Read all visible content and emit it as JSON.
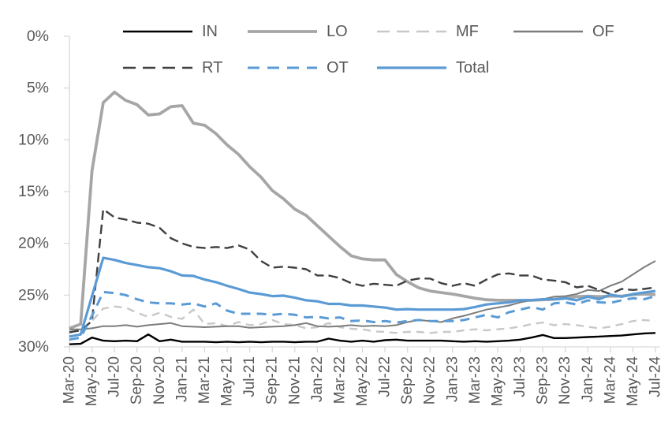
{
  "figure": {
    "background": "#ffffff",
    "axis_color": "#d9d9d9",
    "label_color": "#595959"
  },
  "chart_data": {
    "type": "line",
    "title": "",
    "xlabel": "",
    "ylabel": "",
    "ylim": [
      0,
      30
    ],
    "y_tick_step": 5,
    "y_ticks": [
      "0%",
      "5%",
      "10%",
      "15%",
      "20%",
      "25%",
      "30%"
    ],
    "x_tick_every": 2,
    "grid": false,
    "legend_position": "top",
    "x": [
      "Mar-20",
      "Apr-20",
      "May-20",
      "Jun-20",
      "Jul-20",
      "Aug-20",
      "Sep-20",
      "Oct-20",
      "Nov-20",
      "Dec-20",
      "Jan-21",
      "Feb-21",
      "Mar-21",
      "Apr-21",
      "May-21",
      "Jun-21",
      "Jul-21",
      "Aug-21",
      "Sep-21",
      "Oct-21",
      "Nov-21",
      "Dec-21",
      "Jan-22",
      "Feb-22",
      "Mar-22",
      "Apr-22",
      "May-22",
      "Jun-22",
      "Jul-22",
      "Aug-22",
      "Sep-22",
      "Oct-22",
      "Nov-22",
      "Dec-22",
      "Jan-23",
      "Feb-23",
      "Mar-23",
      "Apr-23",
      "May-23",
      "Jun-23",
      "Jul-23",
      "Aug-23",
      "Sep-23",
      "Oct-23",
      "Nov-23",
      "Dec-23",
      "Jan-24",
      "Feb-24",
      "Mar-24",
      "Apr-24",
      "May-24",
      "Jun-24",
      "Jul-24"
    ],
    "series": [
      {
        "name": "IN",
        "color": "#000000",
        "style": "solid",
        "width": 2.4,
        "values": [
          0.25,
          0.3,
          0.9,
          0.6,
          0.55,
          0.6,
          0.55,
          1.2,
          0.55,
          0.7,
          0.5,
          0.5,
          0.5,
          0.45,
          0.5,
          0.45,
          0.5,
          0.45,
          0.5,
          0.5,
          0.45,
          0.5,
          0.5,
          0.8,
          0.6,
          0.5,
          0.6,
          0.5,
          0.65,
          0.7,
          0.6,
          0.6,
          0.6,
          0.6,
          0.55,
          0.5,
          0.55,
          0.5,
          0.55,
          0.6,
          0.7,
          0.9,
          1.15,
          0.85,
          0.85,
          0.9,
          0.95,
          1.0,
          1.05,
          1.1,
          1.2,
          1.3,
          1.35
        ]
      },
      {
        "name": "LO",
        "color": "#a6a6a6",
        "style": "solid",
        "width": 3.8,
        "values": [
          1.8,
          2.2,
          17.0,
          23.6,
          24.6,
          23.8,
          23.4,
          22.4,
          22.5,
          23.2,
          23.3,
          21.6,
          21.4,
          20.6,
          19.5,
          18.6,
          17.4,
          16.4,
          15.1,
          14.3,
          13.3,
          12.7,
          11.7,
          10.7,
          9.7,
          8.8,
          8.5,
          8.4,
          8.4,
          7.0,
          6.3,
          5.7,
          5.4,
          5.25,
          5.1,
          4.9,
          4.7,
          4.55,
          4.5,
          4.5,
          4.5,
          4.5,
          4.55,
          4.6,
          4.7,
          4.85,
          4.9,
          4.85,
          4.9,
          4.9,
          5.05,
          5.1,
          5.05
        ]
      },
      {
        "name": "MF",
        "color": "#c8c8c8",
        "style": "dashed",
        "width": 2.4,
        "values": [
          1.5,
          1.6,
          2.5,
          3.7,
          3.9,
          3.8,
          3.3,
          2.9,
          3.3,
          2.9,
          2.7,
          3.6,
          2.2,
          2.3,
          2.0,
          2.4,
          2.1,
          2.2,
          2.6,
          2.2,
          2.1,
          1.8,
          1.9,
          2.3,
          1.9,
          1.75,
          1.7,
          1.5,
          1.45,
          1.35,
          1.45,
          1.45,
          1.35,
          1.45,
          1.45,
          1.6,
          1.7,
          1.6,
          1.7,
          1.8,
          1.95,
          2.2,
          2.35,
          2.1,
          2.2,
          2.1,
          1.95,
          1.8,
          1.95,
          2.2,
          2.5,
          2.6,
          2.5
        ]
      },
      {
        "name": "OF",
        "color": "#7c7c7c",
        "style": "solid",
        "width": 2.0,
        "values": [
          1.7,
          1.7,
          1.8,
          2.0,
          2.0,
          2.1,
          1.95,
          2.1,
          2.2,
          2.3,
          2.0,
          1.95,
          1.9,
          1.95,
          2.0,
          2.0,
          1.85,
          1.9,
          1.95,
          2.0,
          2.1,
          2.3,
          2.0,
          1.95,
          2.0,
          2.1,
          2.0,
          2.05,
          2.0,
          2.1,
          2.4,
          2.6,
          2.5,
          2.4,
          2.75,
          3.0,
          3.3,
          3.6,
          3.8,
          4.0,
          4.3,
          4.5,
          4.6,
          4.85,
          4.9,
          5.1,
          5.5,
          5.4,
          5.9,
          6.3,
          7.0,
          7.7,
          8.3
        ]
      },
      {
        "name": "RT",
        "color": "#3f3f3f",
        "style": "dashed",
        "width": 2.4,
        "values": [
          1.4,
          1.6,
          2.5,
          13.3,
          12.5,
          12.3,
          12.0,
          11.9,
          11.5,
          10.5,
          10.0,
          9.65,
          9.55,
          9.65,
          9.55,
          9.8,
          9.4,
          8.3,
          7.65,
          7.75,
          7.65,
          7.5,
          6.9,
          6.9,
          6.65,
          6.15,
          5.9,
          6.1,
          6.0,
          5.9,
          6.4,
          6.6,
          6.6,
          6.15,
          5.9,
          6.15,
          5.9,
          6.5,
          7.0,
          7.1,
          6.9,
          6.9,
          6.5,
          6.4,
          6.25,
          5.75,
          5.9,
          5.5,
          5.1,
          5.6,
          5.5,
          5.6,
          5.75
        ]
      },
      {
        "name": "OT",
        "color": "#5b9bd5",
        "style": "dashed",
        "width": 3.0,
        "values": [
          0.7,
          0.9,
          3.0,
          5.3,
          5.2,
          5.0,
          4.6,
          4.3,
          4.2,
          4.2,
          4.1,
          4.2,
          3.9,
          4.2,
          3.5,
          3.2,
          3.2,
          3.2,
          3.1,
          3.2,
          3.1,
          2.85,
          2.9,
          2.75,
          2.85,
          2.5,
          2.55,
          2.4,
          2.5,
          2.35,
          2.5,
          2.6,
          2.5,
          2.5,
          2.5,
          2.6,
          2.85,
          3.1,
          2.85,
          3.35,
          3.6,
          3.85,
          3.6,
          4.2,
          4.3,
          4.1,
          4.5,
          4.3,
          4.25,
          4.5,
          4.7,
          4.6,
          4.9
        ]
      },
      {
        "name": "Total",
        "color": "#5b9bd5",
        "style": "solid",
        "width": 3.2,
        "values": [
          1.0,
          1.2,
          4.9,
          8.6,
          8.4,
          8.1,
          7.9,
          7.7,
          7.6,
          7.3,
          6.9,
          6.85,
          6.5,
          6.25,
          5.9,
          5.6,
          5.25,
          5.1,
          4.9,
          4.95,
          4.75,
          4.5,
          4.4,
          4.15,
          4.15,
          4.0,
          4.0,
          3.9,
          3.8,
          3.6,
          3.65,
          3.6,
          3.6,
          3.6,
          3.6,
          3.65,
          3.85,
          4.1,
          4.2,
          4.3,
          4.5,
          4.5,
          4.6,
          4.6,
          4.7,
          4.5,
          4.85,
          4.6,
          5.05,
          4.85,
          5.1,
          5.25,
          5.4
        ]
      }
    ]
  }
}
